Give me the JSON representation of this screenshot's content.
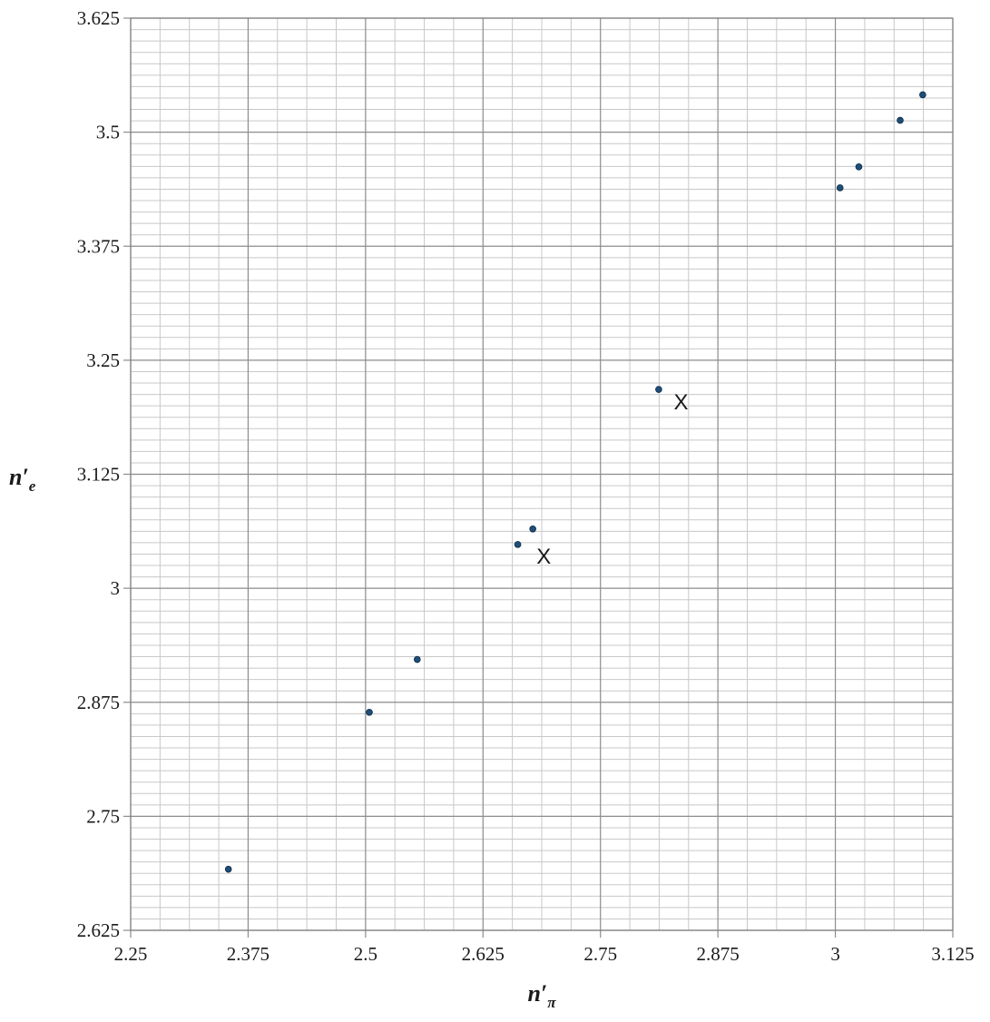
{
  "chart_data": {
    "type": "scatter",
    "xlabel": "n′",
    "xlabel_sub": "π",
    "ylabel": "n′",
    "ylabel_sub": "e",
    "xlim": [
      2.25,
      3.125
    ],
    "ylim": [
      2.625,
      3.625
    ],
    "x_ticks": [
      "2.25",
      "2.375",
      "2.5",
      "2.625",
      "2.75",
      "2.875",
      "3",
      "3.125"
    ],
    "y_ticks": [
      "2.625",
      "2.75",
      "2.875",
      "3",
      "3.125",
      "3.25",
      "3.375",
      "3.5",
      "3.625"
    ],
    "grid": true,
    "marker_color": "#1f4e79",
    "points": [
      {
        "x": 2.354,
        "y": 2.692
      },
      {
        "x": 2.504,
        "y": 2.864
      },
      {
        "x": 2.555,
        "y": 2.922
      },
      {
        "x": 2.662,
        "y": 3.048
      },
      {
        "x": 2.678,
        "y": 3.065
      },
      {
        "x": 2.812,
        "y": 3.218
      },
      {
        "x": 3.005,
        "y": 3.439
      },
      {
        "x": 3.025,
        "y": 3.462
      },
      {
        "x": 3.069,
        "y": 3.513
      },
      {
        "x": 3.093,
        "y": 3.541
      }
    ],
    "annotations": [
      {
        "text": "X",
        "x": 2.682,
        "y": 3.027
      },
      {
        "text": "X",
        "x": 2.828,
        "y": 3.196
      }
    ]
  }
}
